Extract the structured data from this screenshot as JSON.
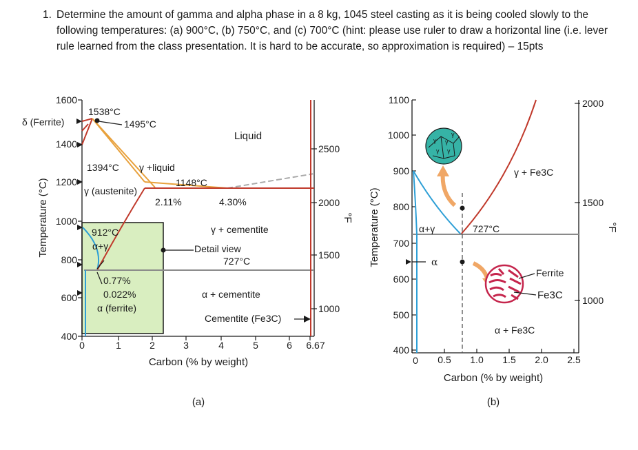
{
  "question": {
    "number": "1.",
    "text": "Determine the amount of gamma and alpha phase in a 8 kg, 1045 steel casting as it is being cooled slowly to the following temperatures: (a) 900°C, (b) 750°C, and (c) 700°C (hint: please use ruler to draw a horizontal line (i.e. lever rule learned from the class presentation. It is hard to be accurate, so approximation is required) – 15pts"
  },
  "colors": {
    "axis": "#1a1a1a",
    "phase_red": "#c0392b",
    "phase_orange": "#e8a13c",
    "phase_gray": "#8a8a8a",
    "phase_blue": "#2e9fd6",
    "detail_box": "#d9eec0",
    "pearlite": "#c5254c"
  },
  "diagram_a": {
    "ylabel": "Temperature (°C)",
    "y2label": "°F",
    "xlabel": "Carbon (% by weight)",
    "caption": "(a)",
    "yticks": [
      "1600",
      "1400",
      "1200",
      "1000",
      "800",
      "600",
      "400"
    ],
    "xticks": [
      "0",
      "1",
      "2",
      "3",
      "4",
      "5",
      "6",
      "6.67"
    ],
    "fticks": [
      "2500",
      "2000",
      "1500",
      "1000"
    ],
    "labels": {
      "delta": "δ (Ferrite)",
      "t1538": "1538°C",
      "t1495": "1495°C",
      "liquid": "Liquid",
      "t1394": "1394°C",
      "gamma_liquid": "γ +liquid",
      "austenite": "γ (austenite)",
      "t1148": "1148°C",
      "c211": "2.11%",
      "c430": "4.30%",
      "t912": "912°C",
      "alpha_gamma": "α+γ",
      "gamma_cementite": "γ + cementite",
      "detail_view": "Detail view",
      "t727": "727°C",
      "c077": "0.77%",
      "c0022": "0.022%",
      "alpha_ferrite": "α (ferrite)",
      "alpha_cementite": "α + cementite",
      "cementite": "Cementite (Fe3C)"
    }
  },
  "diagram_b": {
    "ylabel": "Temperature (°C)",
    "y2label": "°F",
    "xlabel": "Carbon (% by weight)",
    "caption": "(b)",
    "yticks": [
      "1100",
      "1000",
      "900",
      "800",
      "700",
      "600",
      "500",
      "400"
    ],
    "xticks": [
      "0",
      "0.5",
      "1.0",
      "1.5",
      "2.0",
      "2.5"
    ],
    "fticks": [
      "2000",
      "1500",
      "1000"
    ],
    "labels": {
      "gamma_fe3c": "γ + Fe3C",
      "alpha_gamma": "α+γ",
      "t727": "727°C",
      "alpha": "α",
      "ferrite": "Ferrite",
      "fe3c": "Fe3C",
      "alpha_fe3c": "α + Fe3C",
      "gamma_sym": "γ"
    }
  }
}
